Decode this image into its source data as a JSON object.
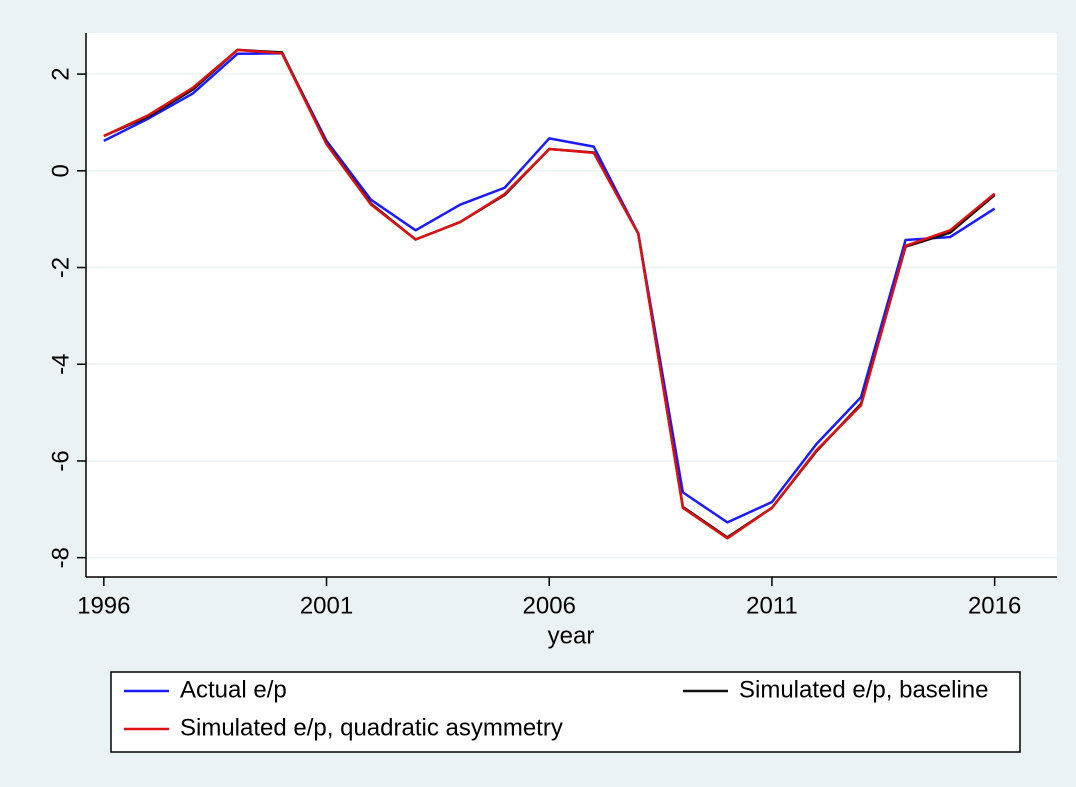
{
  "chart_data": {
    "type": "line",
    "x_label": "year",
    "x": [
      1996,
      1997,
      1998,
      1999,
      2000,
      2001,
      2002,
      2003,
      2004,
      2005,
      2006,
      2007,
      2008,
      2009,
      2010,
      2011,
      2012,
      2013,
      2014,
      2015,
      2016
    ],
    "series": [
      {
        "name": "Actual e/p",
        "color": "#1a1aff",
        "values": [
          0.62,
          1.08,
          1.6,
          2.42,
          2.43,
          0.62,
          -0.6,
          -1.23,
          -0.7,
          -0.35,
          0.67,
          0.5,
          -1.3,
          -6.65,
          -7.27,
          -6.85,
          -5.65,
          -4.68,
          -1.43,
          -1.37,
          -0.78
        ]
      },
      {
        "name": "Simulated e/p, baseline",
        "color": "#111111",
        "values": [
          0.72,
          1.12,
          1.68,
          2.5,
          2.45,
          0.57,
          -0.68,
          -1.42,
          -1.06,
          -0.5,
          0.45,
          0.38,
          -1.3,
          -6.95,
          -7.58,
          -6.97,
          -5.8,
          -4.82,
          -1.57,
          -1.28,
          -0.5
        ]
      },
      {
        "name": "Simulated e/p, quadratic asymmetry",
        "color": "#e01010",
        "values": [
          0.72,
          1.15,
          1.72,
          2.5,
          2.43,
          0.55,
          -0.7,
          -1.42,
          -1.06,
          -0.48,
          0.45,
          0.37,
          -1.3,
          -6.97,
          -7.6,
          -6.97,
          -5.78,
          -4.85,
          -1.55,
          -1.23,
          -0.47
        ]
      }
    ],
    "xlim": [
      1995.6,
      2017.4
    ],
    "xticks": [
      1996,
      2001,
      2006,
      2011,
      2016
    ],
    "ylim": [
      -8.4,
      2.85
    ],
    "yticks": [
      -8,
      -6,
      -4,
      -2,
      0,
      2
    ],
    "grid": true
  }
}
